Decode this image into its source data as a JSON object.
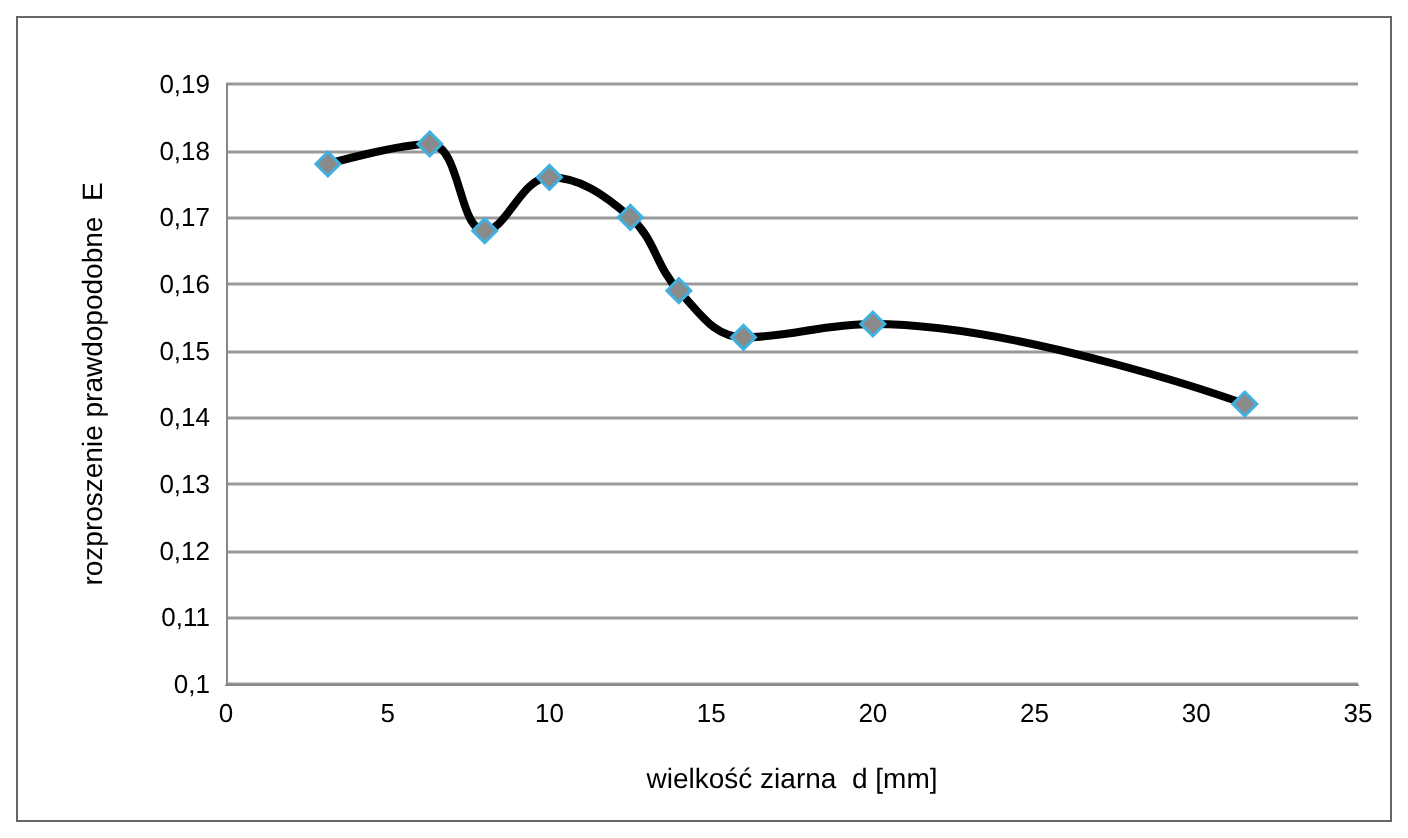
{
  "chart_data": {
    "type": "line",
    "xlabel": "wielkość ziarna  d [mm]",
    "ylabel": "rozproszenie prawdopodobne  E",
    "series": [
      {
        "color": "#000000",
        "x": [
          3.15,
          6.3,
          8,
          10,
          12.5,
          14,
          16,
          20,
          31.5
        ],
        "values": [
          0.178,
          0.181,
          0.168,
          0.176,
          0.17,
          0.159,
          0.152,
          0.154,
          0.142
        ]
      }
    ],
    "xlim": [
      0,
      35
    ],
    "xticks": [
      0,
      5,
      10,
      15,
      20,
      25,
      30,
      35
    ],
    "ylim": [
      0.1,
      0.19
    ],
    "yticks": [
      {
        "value": 0.1,
        "label": "0,1"
      },
      {
        "value": 0.11,
        "label": "0,11"
      },
      {
        "value": 0.12,
        "label": "0,12"
      },
      {
        "value": 0.13,
        "label": "0,13"
      },
      {
        "value": 0.14,
        "label": "0,14"
      },
      {
        "value": 0.15,
        "label": "0,15"
      },
      {
        "value": 0.16,
        "label": "0,16"
      },
      {
        "value": 0.17,
        "label": "0,17"
      },
      {
        "value": 0.18,
        "label": "0,18"
      },
      {
        "value": 0.19,
        "label": "0,19"
      }
    ],
    "grid": "y",
    "marker": "diamond",
    "line_style": "solid"
  }
}
